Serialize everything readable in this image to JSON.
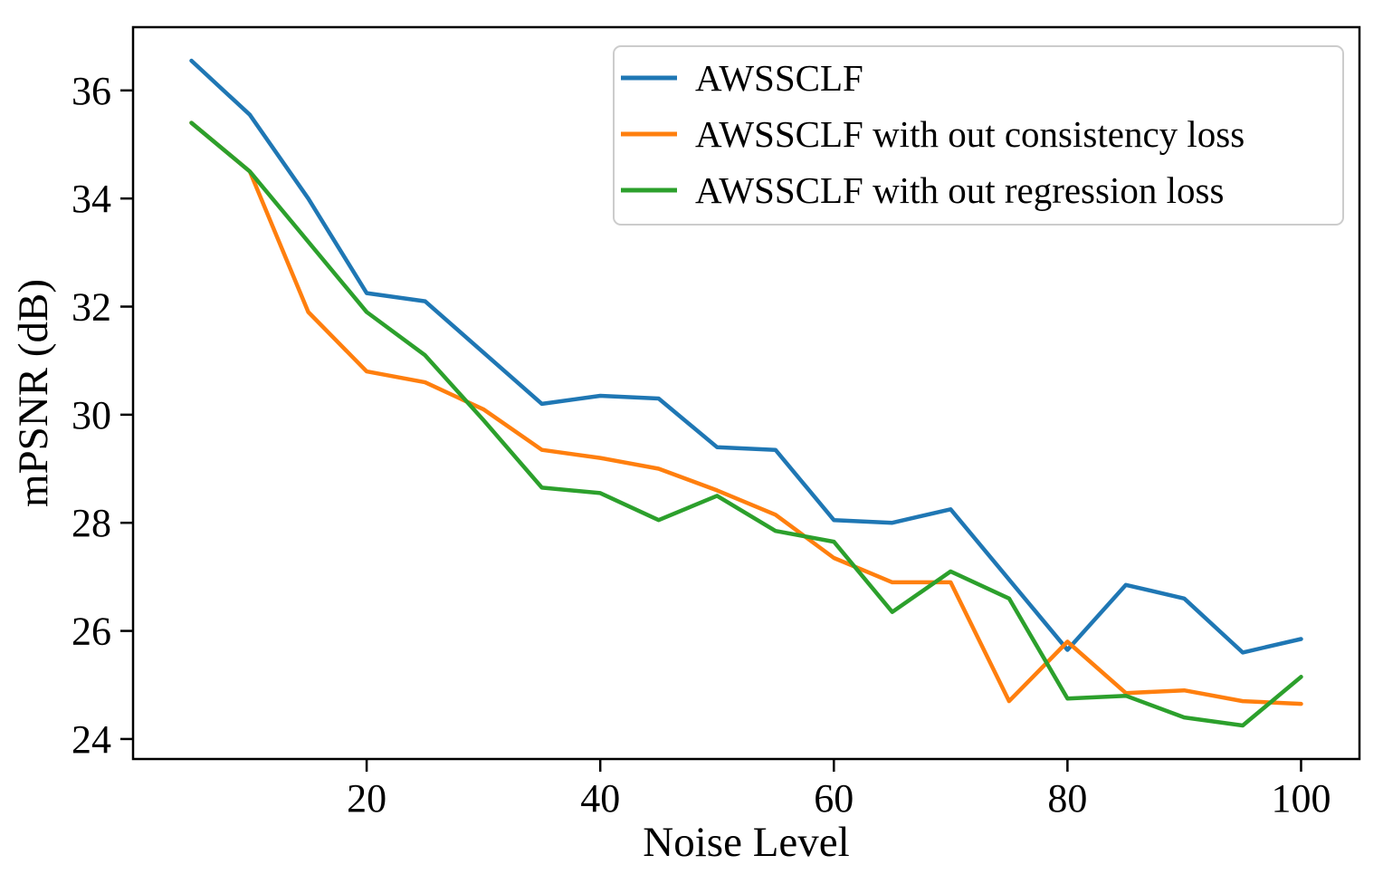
{
  "figure": {
    "background": "#ffffff",
    "axis_color": "#000000",
    "legend_border_color": "#cccccc"
  },
  "chart_data": {
    "type": "line",
    "title": "",
    "xlabel": "Noise Level",
    "ylabel": "mPSNR (dB)",
    "x": [
      5,
      10,
      15,
      20,
      25,
      30,
      35,
      40,
      45,
      50,
      55,
      60,
      65,
      70,
      75,
      80,
      85,
      90,
      95,
      100
    ],
    "xticks": [
      20,
      40,
      60,
      80,
      100
    ],
    "yticks": [
      24,
      26,
      28,
      30,
      32,
      34,
      36
    ],
    "xlim": [
      0,
      105
    ],
    "ylim": [
      23.63,
      37.17
    ],
    "grid": false,
    "legend_position": "upper right",
    "series": [
      {
        "name": "AWSSCLF",
        "color": "#1f77b4",
        "values": [
          36.55,
          35.55,
          34.0,
          32.25,
          32.1,
          31.15,
          30.2,
          30.35,
          30.3,
          29.4,
          29.35,
          28.05,
          28.0,
          28.25,
          26.95,
          25.65,
          26.85,
          26.6,
          25.6,
          25.85
        ]
      },
      {
        "name": "AWSSCLF with out consistency loss",
        "color": "#ff7f0e",
        "values": [
          35.4,
          34.5,
          31.9,
          30.8,
          30.6,
          30.1,
          29.35,
          29.2,
          29.0,
          28.6,
          28.15,
          27.35,
          26.9,
          26.9,
          24.7,
          25.8,
          24.85,
          24.9,
          24.7,
          24.65
        ]
      },
      {
        "name": "AWSSCLF with out regression loss",
        "color": "#2ca02c",
        "values": [
          35.4,
          34.5,
          33.2,
          31.9,
          31.1,
          29.9,
          28.65,
          28.55,
          28.05,
          28.5,
          27.85,
          27.65,
          26.35,
          27.1,
          26.6,
          24.75,
          24.8,
          24.4,
          24.25,
          25.15
        ]
      }
    ]
  }
}
